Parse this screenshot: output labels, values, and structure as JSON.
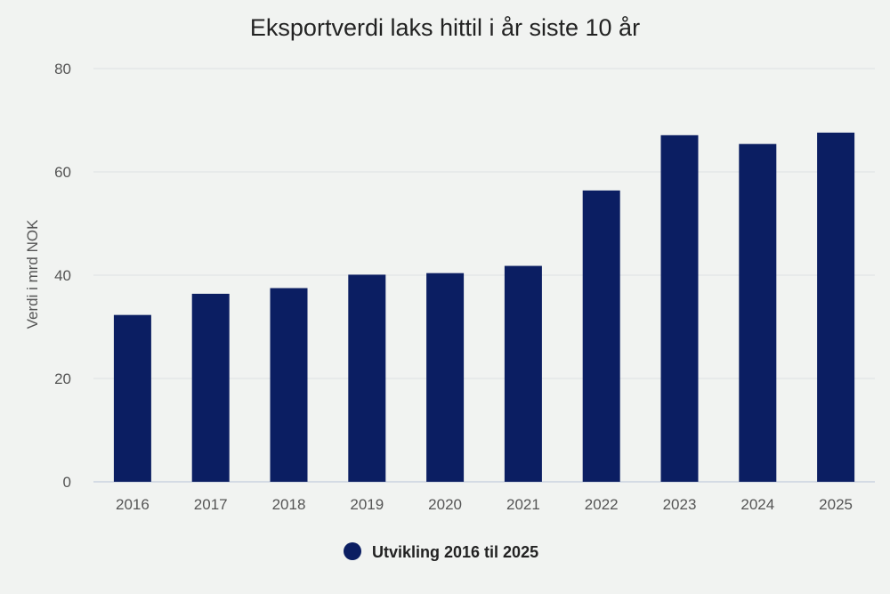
{
  "chart_data": {
    "type": "bar",
    "title": "Eksportverdi laks hittil i år siste 10 år",
    "xlabel": "",
    "ylabel": "Verdi i mrd NOK",
    "categories": [
      "2016",
      "2017",
      "2018",
      "2019",
      "2020",
      "2021",
      "2022",
      "2023",
      "2024",
      "2025"
    ],
    "series": [
      {
        "name": "Utvikling 2016 til 2025",
        "values": [
          32.3,
          36.4,
          37.5,
          40.1,
          40.4,
          41.8,
          56.4,
          67.1,
          65.4,
          67.6
        ],
        "color": "#0b1e62"
      }
    ],
    "ylim": [
      0,
      80
    ],
    "yticks": [
      "0",
      "20",
      "40",
      "60",
      "80"
    ],
    "grid": true,
    "legend_position": "bottom-center"
  }
}
